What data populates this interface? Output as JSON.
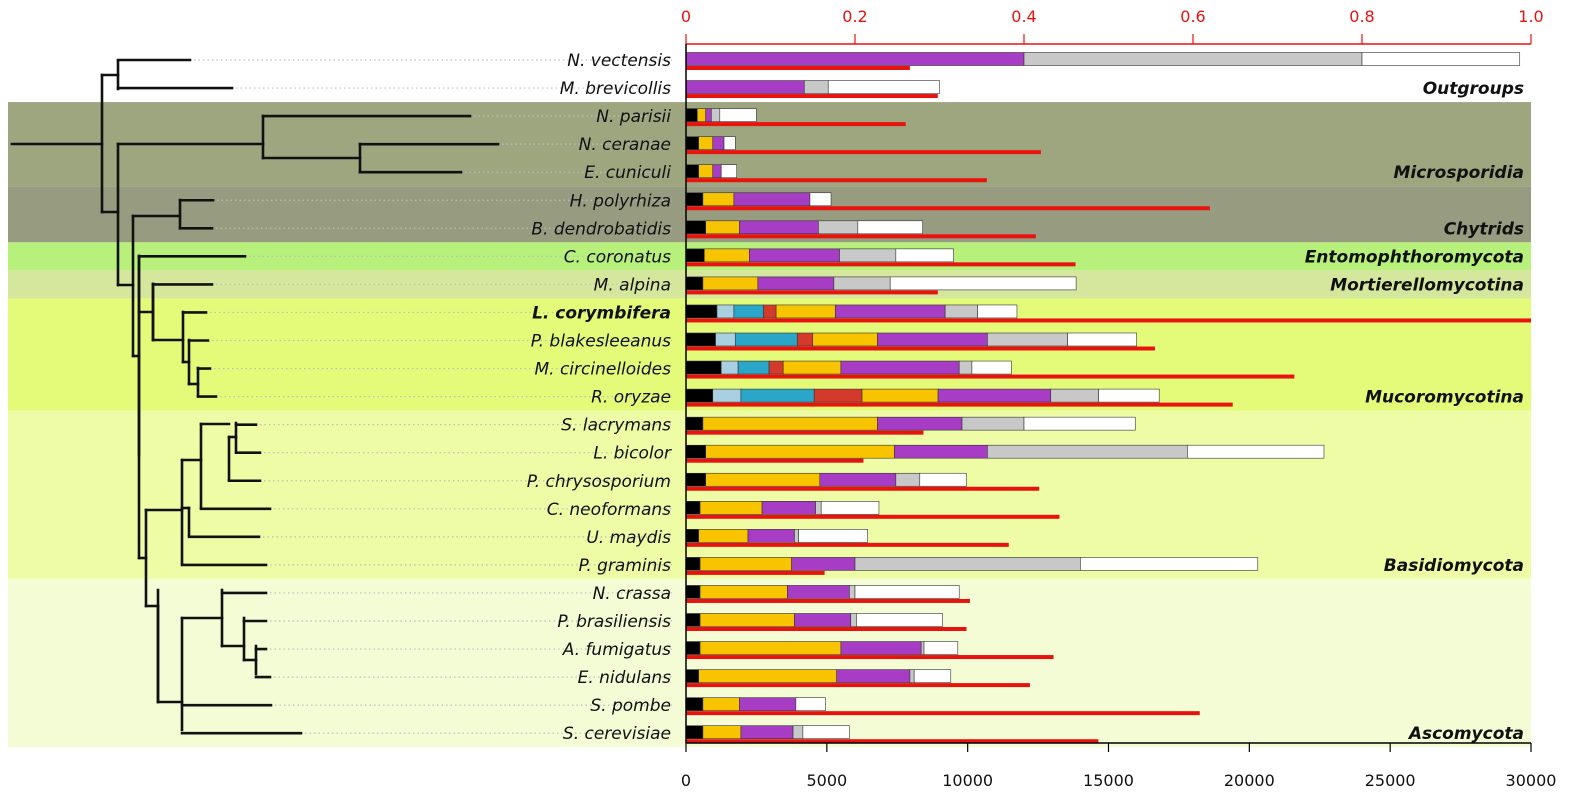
{
  "chart_data": {
    "type": "bar",
    "orientation": "horizontal",
    "stacked": true,
    "title": "",
    "xlabel": "",
    "ylabel": "",
    "x_bottom": {
      "range": [
        0,
        30000
      ],
      "ticks": [
        "0",
        "5000",
        "10000",
        "15000",
        "20000",
        "25000",
        "30000"
      ]
    },
    "x_top": {
      "range": [
        0,
        1.0
      ],
      "ticks": [
        "0",
        "0.2",
        "0.4",
        "0.6",
        "0.8",
        "1.0"
      ],
      "color": "#e8130f"
    },
    "segment_colors": [
      "#000000",
      "#a8d0e0",
      "#2aa6c8",
      "#d33a2c",
      "#f8c400",
      "#a63dc4",
      "#c8c8c8",
      "#ffffff"
    ],
    "ratio_color": "#e8130f",
    "species": [
      {
        "name": "N. vectensis",
        "segments": [
          0,
          0,
          0,
          0,
          0,
          12000,
          0,
          0
        ],
        "bold": false
      },
      {
        "name": "M. brevicollis",
        "segments": [
          0,
          0,
          0,
          0,
          0,
          4200,
          0,
          0
        ],
        "bold": false
      },
      {
        "name": "N. parisii",
        "segments": [
          400,
          0,
          0,
          0,
          300,
          200,
          0,
          0
        ],
        "bold": false
      },
      {
        "name": "N. ceranae",
        "segments": [
          450,
          0,
          0,
          0,
          500,
          400,
          0,
          0
        ],
        "bold": false
      },
      {
        "name": "E. cuniculi",
        "segments": [
          450,
          0,
          0,
          0,
          500,
          300,
          0,
          0
        ],
        "bold": false
      },
      {
        "name": "H. polyrhiza",
        "segments": [
          600,
          0,
          0,
          0,
          1100,
          2700,
          0,
          0
        ],
        "bold": false
      },
      {
        "name": "B. dendrobatidis",
        "segments": [
          700,
          0,
          0,
          0,
          1200,
          2800,
          0,
          0
        ],
        "bold": false
      },
      {
        "name": "C. coronatus",
        "segments": [
          650,
          0,
          0,
          0,
          1600,
          3200,
          0,
          0
        ],
        "bold": false
      },
      {
        "name": "M. alpina",
        "segments": [
          600,
          0,
          0,
          0,
          1950,
          2700,
          0,
          0
        ],
        "bold": false
      },
      {
        "name": "L. corymbifera",
        "segments": [
          1100,
          600,
          1050,
          450,
          2100,
          3900,
          0,
          0
        ],
        "bold": true
      },
      {
        "name": "P. blakesleeanus",
        "segments": [
          1050,
          700,
          2200,
          550,
          2300,
          3900,
          0,
          0
        ],
        "bold": false
      },
      {
        "name": "M. circinelloides",
        "segments": [
          1250,
          600,
          1100,
          500,
          2050,
          4200,
          0,
          0
        ],
        "bold": false
      },
      {
        "name": "R. oryzae",
        "segments": [
          950,
          1000,
          2600,
          1700,
          2700,
          4000,
          0,
          0
        ],
        "bold": false
      },
      {
        "name": "S. lacrymans",
        "segments": [
          600,
          0,
          0,
          0,
          6200,
          3000,
          0,
          0
        ],
        "bold": false
      },
      {
        "name": "L. bicolor",
        "segments": [
          700,
          0,
          0,
          0,
          6700,
          3300,
          0,
          0
        ],
        "bold": false
      },
      {
        "name": "P. chrysosporium",
        "segments": [
          700,
          0,
          0,
          0,
          4050,
          2700,
          0,
          0
        ],
        "bold": false
      },
      {
        "name": "C. neoformans",
        "segments": [
          500,
          0,
          0,
          0,
          2200,
          1900,
          0,
          0
        ],
        "bold": false
      },
      {
        "name": "U. maydis",
        "segments": [
          450,
          0,
          0,
          0,
          1750,
          1650,
          0,
          0
        ],
        "bold": false
      },
      {
        "name": "P. graminis",
        "segments": [
          500,
          0,
          0,
          0,
          3250,
          2250,
          0,
          0
        ],
        "bold": false
      },
      {
        "name": "N. crassa",
        "segments": [
          500,
          0,
          0,
          0,
          3100,
          2200,
          0,
          0
        ],
        "bold": false
      },
      {
        "name": "P. brasiliensis",
        "segments": [
          500,
          0,
          0,
          0,
          3350,
          2000,
          0,
          0
        ],
        "bold": false
      },
      {
        "name": "A. fumigatus",
        "segments": [
          500,
          0,
          0,
          0,
          5000,
          2850,
          0,
          0
        ],
        "bold": false
      },
      {
        "name": "E. nidulans",
        "segments": [
          450,
          0,
          0,
          0,
          4900,
          2600,
          0,
          0
        ],
        "bold": false
      },
      {
        "name": "S. pombe",
        "segments": [
          600,
          0,
          0,
          0,
          1300,
          2000,
          0,
          0
        ],
        "bold": false
      },
      {
        "name": "S. cerevisiae",
        "segments": [
          600,
          0,
          0,
          0,
          1350,
          1850,
          0,
          0
        ],
        "bold": false
      }
    ],
    "gray_segments": [
      12000,
      850,
      300,
      0,
      0,
      0,
      1400,
      2000,
      2000,
      1150,
      2850,
      450,
      1700,
      2200,
      7100,
      850,
      200,
      150,
      8000,
      200,
      200,
      100,
      150,
      0,
      350
    ],
    "white_segments": [
      5600,
      3950,
      1300,
      400,
      550,
      750,
      2300,
      2050,
      6600,
      1400,
      2450,
      1400,
      2150,
      3950,
      4850,
      1650,
      2050,
      2450,
      6300,
      3700,
      3050,
      1200,
      1300,
      1050,
      1650
    ],
    "ratio_values": [
      0.265,
      0.298,
      0.26,
      0.42,
      0.356,
      0.62,
      0.414,
      0.461,
      0.298,
      1.0,
      0.555,
      0.72,
      0.647,
      0.281,
      0.21,
      0.418,
      0.442,
      0.382,
      0.164,
      0.336,
      0.332,
      0.435,
      0.407,
      0.608,
      0.488
    ],
    "groups": [
      {
        "label": "Outgroups",
        "rows": [
          0,
          1
        ],
        "color": "#ffffff"
      },
      {
        "label": "Microsporidia",
        "rows": [
          2,
          4
        ],
        "color": "#9ea680"
      },
      {
        "label": "Chytrids",
        "rows": [
          5,
          6
        ],
        "color": "#979c80"
      },
      {
        "label": "Entomophthoromycota",
        "rows": [
          7,
          7
        ],
        "color": "#b7f07a"
      },
      {
        "label": "Mortierellomycotina",
        "rows": [
          8,
          8
        ],
        "color": "#d5e79c"
      },
      {
        "label": "Mucoromycotina",
        "rows": [
          9,
          12
        ],
        "color": "#e4fb7a"
      },
      {
        "label": "Basidiomycota",
        "rows": [
          13,
          18
        ],
        "color": "#eefca6"
      },
      {
        "label": "Ascomycota",
        "rows": [
          19,
          24
        ],
        "color": "#f3fcd4"
      }
    ],
    "tree_tip_x": [
      190,
      232,
      470,
      498,
      461,
      213,
      212,
      245,
      212,
      206,
      208,
      210,
      216,
      256,
      260,
      260,
      270,
      259,
      266,
      266,
      266,
      266,
      270,
      271,
      301
    ]
  }
}
